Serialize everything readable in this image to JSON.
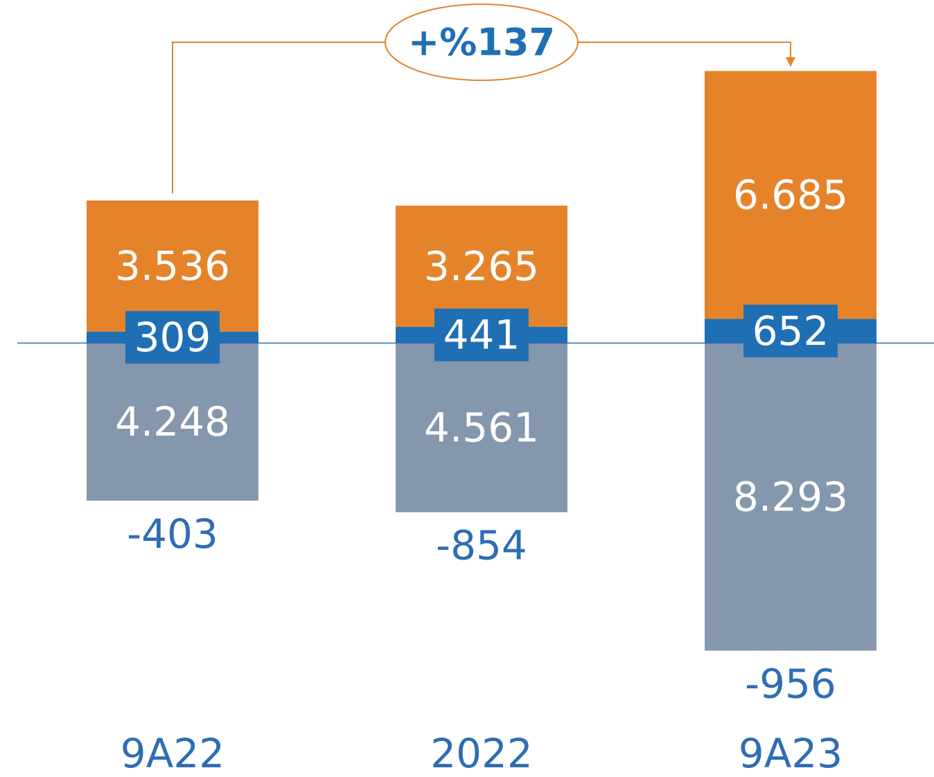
{
  "chart_data": {
    "type": "stacked_bar",
    "categories": [
      "9A22",
      "2022",
      "9A23"
    ],
    "series": [
      {
        "color": "#1f6fb5",
        "values": [
          309,
          441,
          652
        ],
        "label_box": true
      },
      {
        "color": "#e5832a",
        "values": [
          3536,
          3265,
          6685
        ],
        "value_labels": [
          "3.536",
          "3.265",
          "6.685"
        ]
      },
      {
        "color": "#8497ac",
        "values": [
          -4248,
          -4561,
          -8293
        ],
        "value_labels": [
          "4.248",
          "4.561",
          "8.293"
        ]
      }
    ],
    "net": {
      "values": [
        -403,
        -854,
        -956
      ],
      "color": "#2e6db4"
    },
    "annotation": {
      "text": "+%137",
      "from": 0,
      "to": 2,
      "color": "#e5832a"
    },
    "ylim": [
      -11700,
      9250
    ],
    "zero_line_color": "#2e6db4"
  }
}
